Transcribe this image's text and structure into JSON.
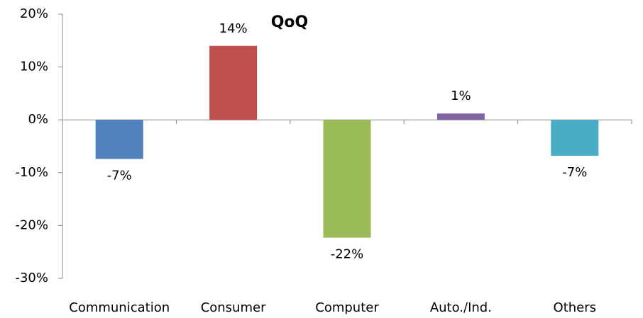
{
  "chart_data": {
    "type": "bar",
    "title": "QoQ",
    "categories": [
      "Communication",
      "Consumer",
      "Computer",
      "Auto./Ind.",
      "Others"
    ],
    "values": [
      -7.4,
      14,
      -22.3,
      1.2,
      -6.8
    ],
    "value_labels": [
      "-7%",
      "14%",
      "-22%",
      "1%",
      "-7%"
    ],
    "colors": [
      "#4f81bd",
      "#c0504d",
      "#9bbb59",
      "#8064a2",
      "#4bacc6"
    ],
    "ylim": [
      -30,
      20
    ],
    "yticks": [
      {
        "value": -30,
        "label": "-30%"
      },
      {
        "value": -20,
        "label": "-20%"
      },
      {
        "value": -10,
        "label": "-10%"
      },
      {
        "value": 0,
        "label": "0%"
      },
      {
        "value": 10,
        "label": "10%"
      },
      {
        "value": 20,
        "label": "20%"
      }
    ],
    "grid": false
  }
}
